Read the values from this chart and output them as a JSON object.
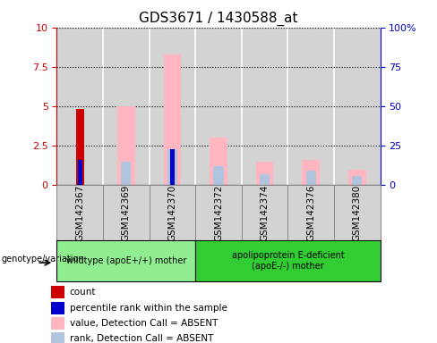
{
  "title": "GDS3671 / 1430588_at",
  "samples": [
    "GSM142367",
    "GSM142369",
    "GSM142370",
    "GSM142372",
    "GSM142374",
    "GSM142376",
    "GSM142380"
  ],
  "group_spans": [
    {
      "label": "wildtype (apoE+/+) mother",
      "start": 0,
      "end": 3,
      "color": "#90ee90"
    },
    {
      "label": "apolipoprotein E-deficient\n(apoE-/-) mother",
      "start": 3,
      "end": 7,
      "color": "#32cd32"
    }
  ],
  "count_values": [
    4.85,
    0.0,
    0.0,
    0.0,
    0.0,
    0.0,
    0.0
  ],
  "percentile_rank_values": [
    1.6,
    0.0,
    2.3,
    0.0,
    0.0,
    0.0,
    0.0
  ],
  "value_absent_values": [
    0.0,
    5.0,
    8.3,
    3.0,
    1.5,
    1.6,
    1.0
  ],
  "rank_absent_values": [
    0.0,
    1.5,
    2.3,
    1.2,
    0.7,
    0.9,
    0.6
  ],
  "left_yaxis": {
    "min": 0,
    "max": 10,
    "ticks": [
      0,
      2.5,
      5.0,
      7.5,
      10
    ],
    "color": "#cc0000"
  },
  "right_yaxis": {
    "min": 0,
    "max": 100,
    "ticks": [
      0,
      25,
      50,
      75,
      100
    ],
    "color": "#0000cc"
  },
  "colors": {
    "count": "#cc0000",
    "percentile_rank": "#0000cc",
    "value_absent": "#ffb6c1",
    "rank_absent": "#b0c4de",
    "col_bg": "#d3d3d3",
    "col_border": "#888888"
  },
  "legend_items": [
    {
      "label": "count",
      "color": "#cc0000"
    },
    {
      "label": "percentile rank within the sample",
      "color": "#0000cc"
    },
    {
      "label": "value, Detection Call = ABSENT",
      "color": "#ffb6c1"
    },
    {
      "label": "rank, Detection Call = ABSENT",
      "color": "#b0c4de"
    }
  ],
  "genotype_label": "genotype/variation",
  "figsize": [
    4.88,
    3.84
  ],
  "dpi": 100
}
